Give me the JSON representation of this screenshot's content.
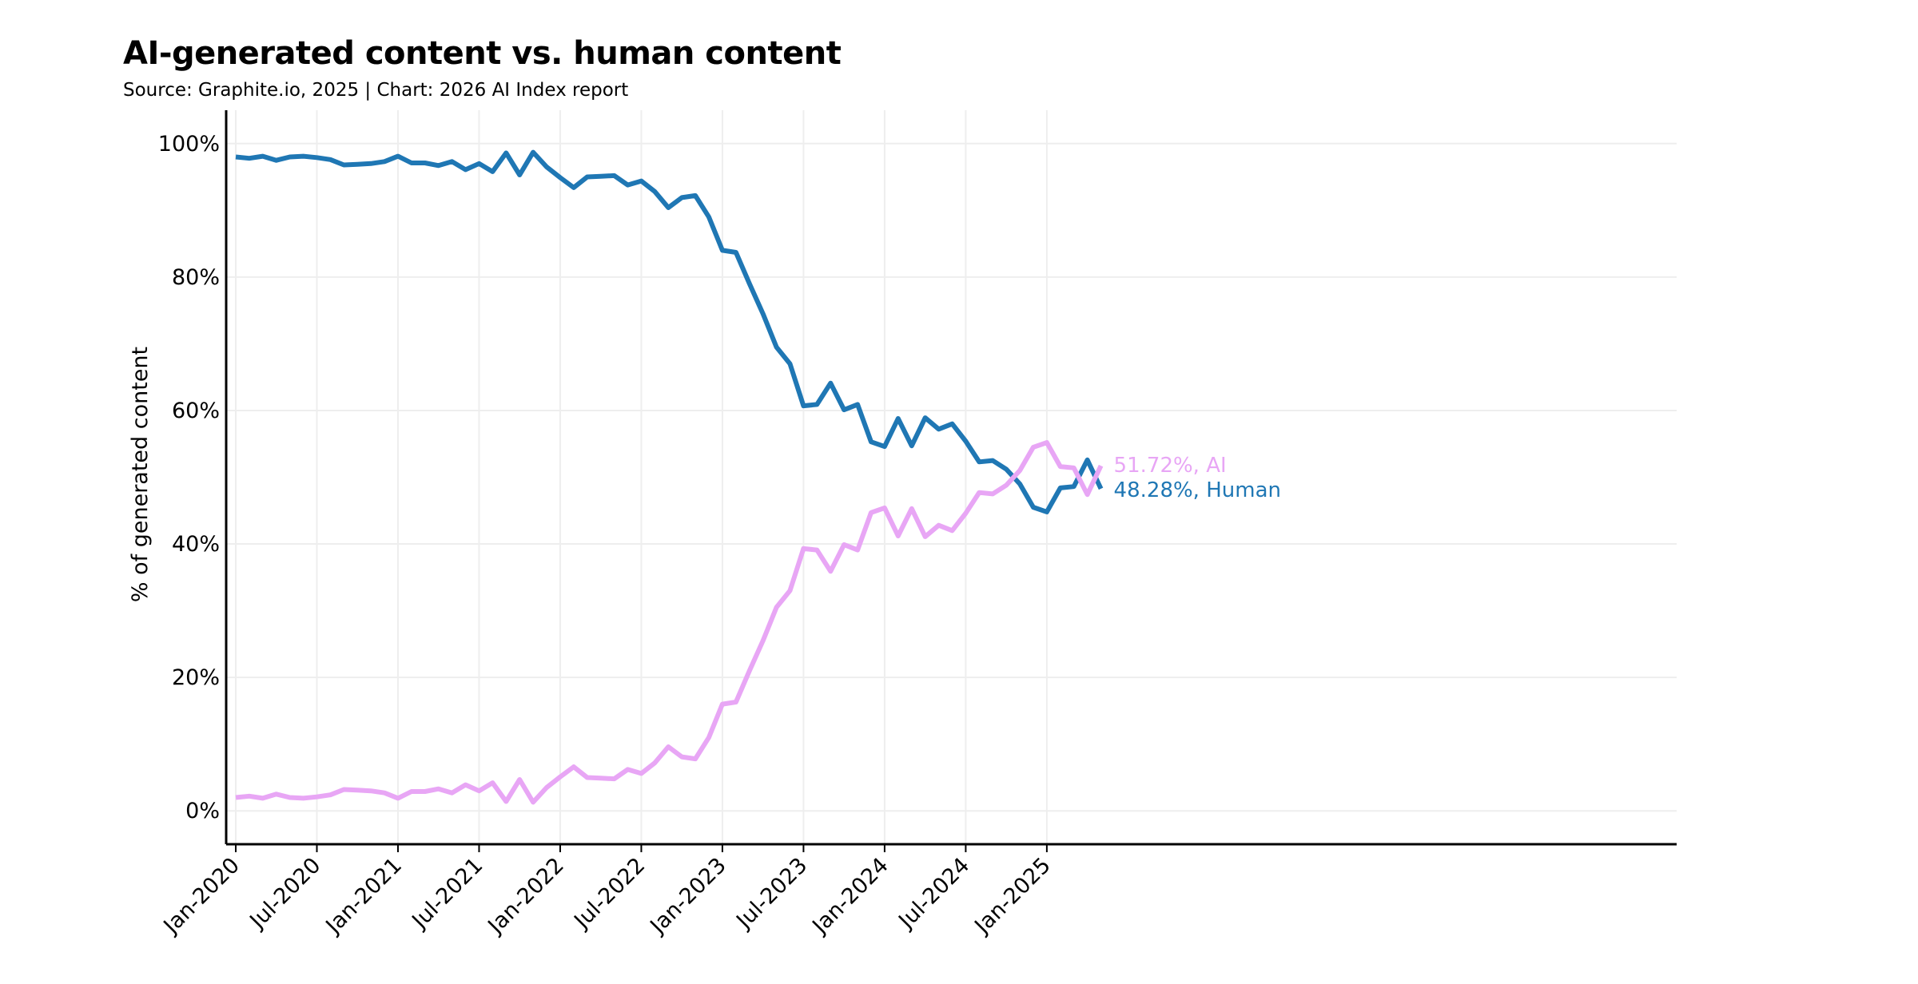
{
  "chart_data": {
    "type": "line",
    "title": "AI-generated content vs. human content",
    "subtitle": "Source: Graphite.io, 2025  | Chart: 2026 AI Index report",
    "xlabel": "",
    "ylabel": "% of generated content",
    "ylim": [
      -5,
      105
    ],
    "yticks": [
      0,
      20,
      40,
      60,
      80,
      100
    ],
    "ytick_labels": [
      "0%",
      "20%",
      "40%",
      "60%",
      "80%",
      "100%"
    ],
    "xtick_labels": [
      "Jan-2020",
      "Jul-2020",
      "Jan-2021",
      "Jul-2021",
      "Jan-2022",
      "Jul-2022",
      "Jan-2023",
      "Jul-2023",
      "Jan-2024",
      "Jul-2024",
      "Jan-2025"
    ],
    "x_start": "Jan-2020",
    "x_end": "Jun-2025",
    "grid": true,
    "colors": {
      "human": "#1f77b4",
      "ai": "#e8a6f5",
      "grid": "#eeeeee",
      "axis": "#000000"
    },
    "series": [
      {
        "name": "Human",
        "end_label": "48.28%, Human",
        "values": [
          98.0,
          97.8,
          98.1,
          97.5,
          98.0,
          98.1,
          97.9,
          97.6,
          96.8,
          96.9,
          97.0,
          97.3,
          98.1,
          97.1,
          97.1,
          96.7,
          97.3,
          96.1,
          97.0,
          95.8,
          98.6,
          95.3,
          98.7,
          96.5,
          94.9,
          93.4,
          95.0,
          95.1,
          95.2,
          93.8,
          94.4,
          92.8,
          90.4,
          91.9,
          92.2,
          89.0,
          84.0,
          83.7,
          79.0,
          74.5,
          69.5,
          67.0,
          60.7,
          60.9,
          64.1,
          60.1,
          60.9,
          55.3,
          54.6,
          58.8,
          54.7,
          58.9,
          57.2,
          58.0,
          55.4,
          52.3,
          52.5,
          51.2,
          49.0,
          45.5,
          44.8,
          48.4,
          48.6,
          52.6,
          48.28
        ]
      },
      {
        "name": "AI",
        "end_label": "51.72%, AI",
        "values": [
          2.0,
          2.2,
          1.9,
          2.5,
          2.0,
          1.9,
          2.1,
          2.4,
          3.2,
          3.1,
          3.0,
          2.7,
          1.9,
          2.9,
          2.9,
          3.3,
          2.7,
          3.9,
          3.0,
          4.2,
          1.4,
          4.7,
          1.3,
          3.5,
          5.1,
          6.6,
          5.0,
          4.9,
          4.8,
          6.2,
          5.6,
          7.2,
          9.6,
          8.1,
          7.8,
          11.0,
          16.0,
          16.3,
          21.0,
          25.5,
          30.5,
          33.0,
          39.3,
          39.1,
          35.9,
          39.9,
          39.1,
          44.7,
          45.4,
          41.2,
          45.3,
          41.1,
          42.8,
          42.0,
          44.6,
          47.7,
          47.5,
          48.8,
          51.0,
          54.5,
          55.2,
          51.6,
          51.4,
          47.4,
          51.72
        ]
      }
    ]
  }
}
